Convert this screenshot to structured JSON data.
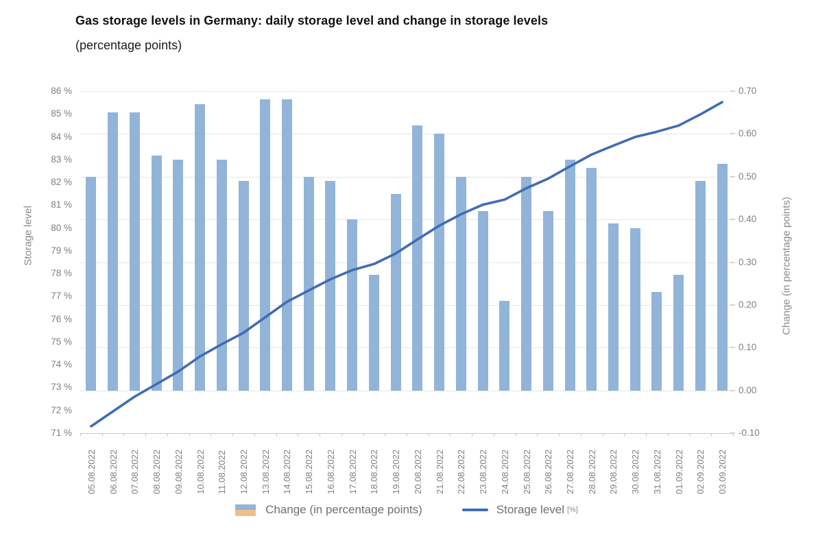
{
  "header": {
    "title": "Gas storage levels in Germany: daily storage level and change in storage levels",
    "subtitle": "(percentage points)"
  },
  "chart_data": {
    "type": "bar+line combo, dual axis",
    "categories": [
      "05.08.2022",
      "06.08.2022",
      "07.08.2022",
      "08.08.2022",
      "09.08.2022",
      "10.08.2022",
      "11.08.2022",
      "12.08.2022",
      "13.08.2022",
      "14.08.2022",
      "15.08.2022",
      "16.08.2022",
      "17.08.2022",
      "18.08.2022",
      "19.08.2022",
      "20.08.2022",
      "21.08.2022",
      "22.08.2022",
      "23.08.2022",
      "24.08.2022",
      "25.08.2022",
      "26.08.2022",
      "27.08.2022",
      "28.08.2022",
      "29.08.2022",
      "30.08.2022",
      "31.08.2022",
      "01.09.2022",
      "02.09.2022",
      "03.09.2022"
    ],
    "series": [
      {
        "name": "Change (in percentage points)",
        "type": "bar",
        "axis": "right",
        "values": [
          0.5,
          0.65,
          0.65,
          0.55,
          0.54,
          0.67,
          0.54,
          0.49,
          0.68,
          0.68,
          0.5,
          0.49,
          0.4,
          0.27,
          0.46,
          0.62,
          0.6,
          0.5,
          0.42,
          0.21,
          0.5,
          0.42,
          0.54,
          0.52,
          0.39,
          0.38,
          0.23,
          0.27,
          0.49,
          0.53
        ]
      },
      {
        "name": "Storage level [%]",
        "type": "line",
        "axis": "left",
        "values": [
          71.3,
          71.95,
          72.6,
          73.15,
          73.7,
          74.36,
          74.9,
          75.4,
          76.08,
          76.76,
          77.26,
          77.75,
          78.15,
          78.42,
          78.88,
          79.5,
          80.1,
          80.6,
          81.02,
          81.24,
          81.74,
          82.16,
          82.7,
          83.22,
          83.61,
          83.99,
          84.22,
          84.49,
          84.98,
          85.52
        ]
      }
    ],
    "left_axis": {
      "title": "Storage level",
      "min": 71,
      "max": 86,
      "tick_step": 1,
      "labels": [
        "86 %",
        "85 %",
        "84 %",
        "83 %",
        "82 %",
        "81 %",
        "80 %",
        "79 %",
        "78 %",
        "77 %",
        "76 %",
        "75 %",
        "74 %",
        "73 %",
        "72 %",
        "71 %"
      ]
    },
    "right_axis": {
      "title": "Change (in percentage points)",
      "min": -0.1,
      "max": 0.7,
      "tick_step": 0.1,
      "labels": [
        "0.70",
        "0.60",
        "0.50",
        "0.40",
        "0.30",
        "0.20",
        "0.10",
        "0.00",
        "-0.10"
      ]
    },
    "legend": {
      "change_label": "Change (in percentage points)",
      "storage_label": "Storage level",
      "storage_suffix": "[%]"
    },
    "layout": {
      "grid": "horizontal, on right-axis ticks",
      "legend_position": "bottom-center",
      "bar_baseline": 0.0
    },
    "colors": {
      "bar_blue": "#92b4d8",
      "bar_orange": "#f2bd8d",
      "line_blue": "#3e6db3",
      "grid": "#e6e6e6",
      "axis_line": "#c9c9c9",
      "right_tick": "#e8cdbd",
      "text_gray": "#7f7f7f",
      "title_color": "#111111"
    }
  }
}
